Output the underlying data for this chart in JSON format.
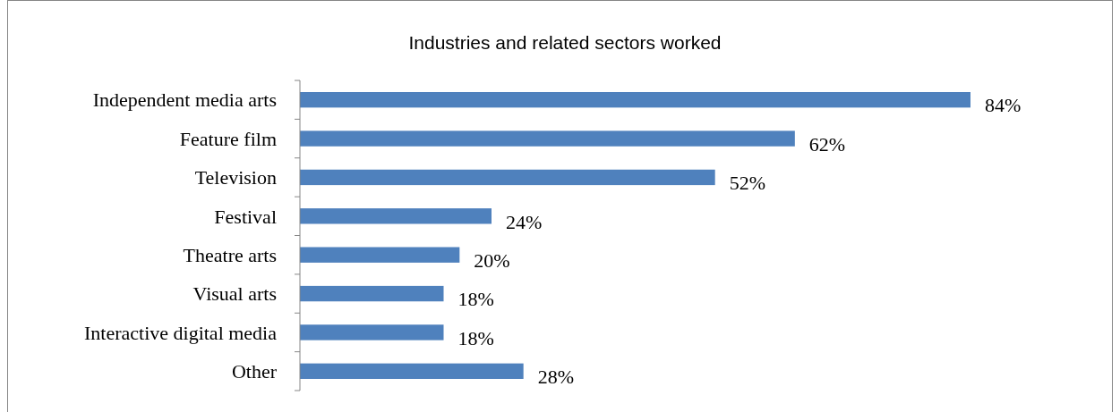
{
  "chart_data": {
    "type": "bar",
    "orientation": "horizontal",
    "title": "Industries and related sectors worked",
    "categories": [
      "Independent media arts",
      "Feature film",
      "Television",
      "Festival",
      "Theatre arts",
      "Visual arts",
      "Interactive digital media",
      "Other"
    ],
    "values": [
      84,
      62,
      52,
      24,
      20,
      18,
      18,
      28
    ],
    "value_labels": [
      "84%",
      "62%",
      "52%",
      "24%",
      "20%",
      "18%",
      "18%",
      "28%"
    ],
    "color": "#4f81bd"
  }
}
